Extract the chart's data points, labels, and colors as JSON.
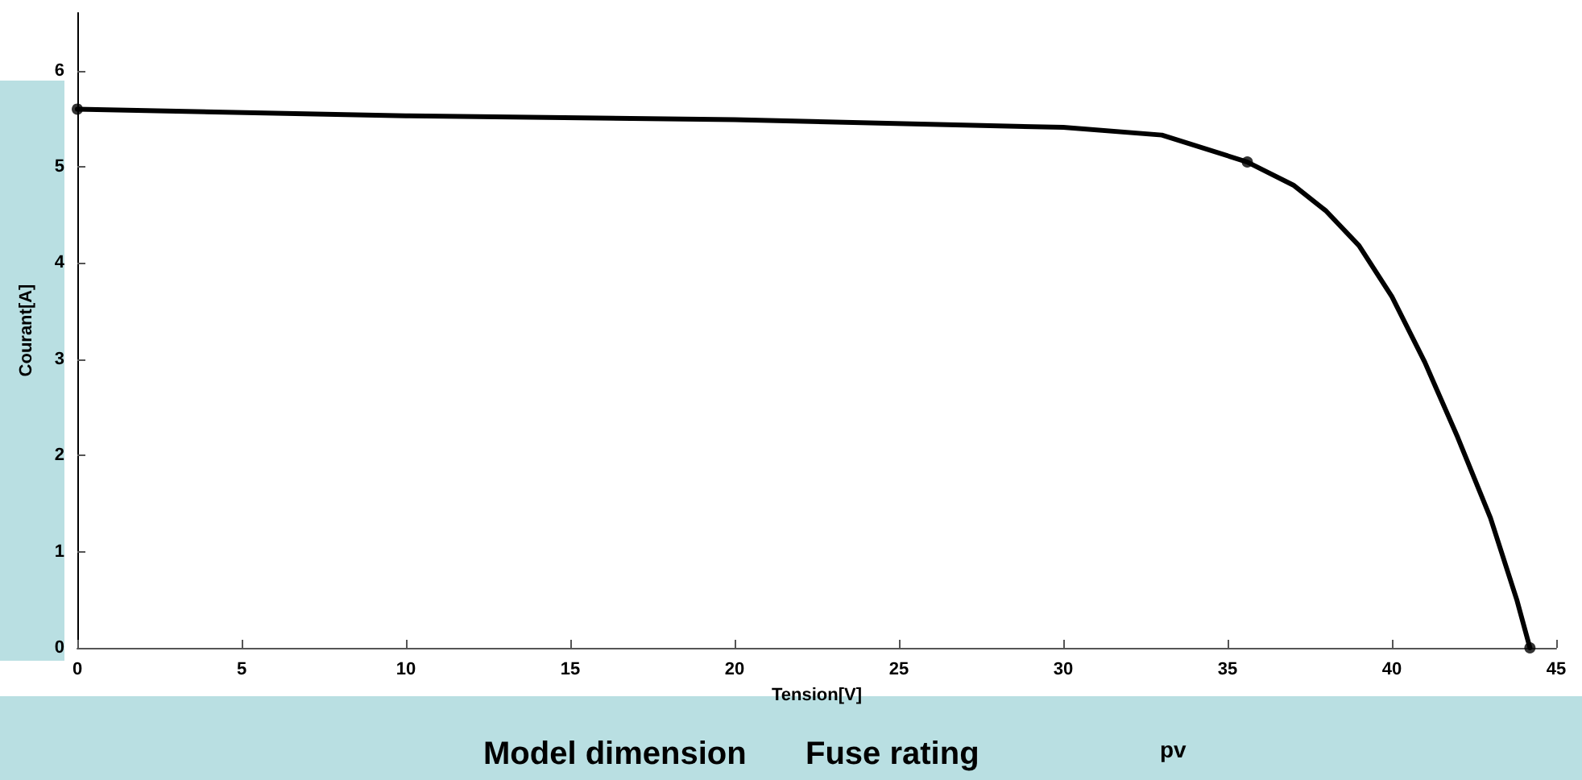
{
  "chart_data": {
    "type": "line",
    "xlabel": "Tension[V]",
    "ylabel": "Courant[A]",
    "annotations": [
      "Model dimension",
      "Fuse rating",
      "pv"
    ],
    "xlim": [
      0,
      45
    ],
    "ylim": [
      0,
      6.6
    ],
    "xticks": [
      0,
      5,
      10,
      15,
      20,
      25,
      30,
      35,
      40,
      45
    ],
    "yticks": [
      0,
      1,
      2,
      3,
      4,
      5,
      6
    ],
    "grid": false,
    "series": [
      {
        "color": "#000000",
        "marker": "none",
        "line_style": "solid",
        "x": [
          0,
          10,
          20,
          30,
          33,
          35.6,
          37,
          38,
          39,
          40,
          41,
          42,
          43,
          43.8,
          44.2
        ],
        "values": [
          5.6,
          5.53,
          5.49,
          5.41,
          5.33,
          5.05,
          4.81,
          4.54,
          4.18,
          3.65,
          2.97,
          2.19,
          1.35,
          0.5,
          0
        ]
      },
      {
        "type": "scatter",
        "color": "#000000",
        "marker": "circle",
        "x": [
          0,
          35.6,
          44.2
        ],
        "values": [
          5.6,
          5.05,
          0
        ]
      }
    ]
  }
}
